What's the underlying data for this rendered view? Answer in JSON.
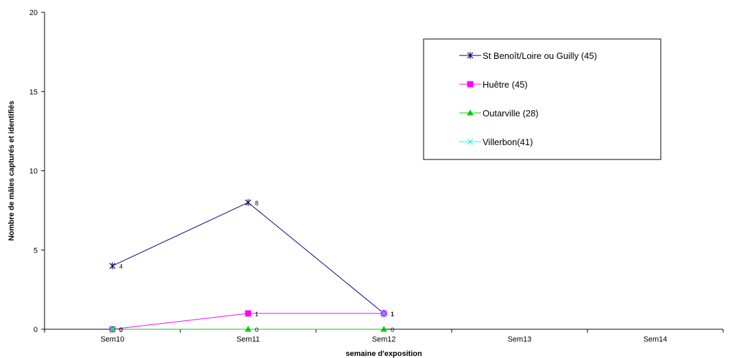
{
  "chart_data": {
    "type": "line",
    "title": "",
    "xlabel": "semaine d'exposition",
    "ylabel": "Nombre de mâles capturés et identifiés",
    "categories": [
      "Sem10",
      "Sem11",
      "Sem12",
      "Sem13",
      "Sem14"
    ],
    "ylim": [
      0,
      20
    ],
    "yticks": [
      "0",
      "5",
      "10",
      "15",
      "20"
    ],
    "grid": false,
    "legend_position": "top-right",
    "series": [
      {
        "name": "St Benoît/Loire ou Guilly (45)",
        "values": [
          4,
          8,
          1,
          null,
          null
        ],
        "labels": [
          "4",
          "8",
          "1",
          null,
          null
        ],
        "color": "#000080",
        "marker": "star"
      },
      {
        "name": "Huêtre (45)",
        "values": [
          0,
          1,
          1,
          null,
          null
        ],
        "labels": [
          "0",
          "1",
          "1",
          null,
          null
        ],
        "color": "#FF00FF",
        "marker": "square"
      },
      {
        "name": "Outarville (28)",
        "values": [
          0,
          0,
          0,
          null,
          null
        ],
        "labels": [
          "0",
          "0",
          "0",
          null,
          null
        ],
        "color": "#00CC00",
        "marker": "triangle"
      },
      {
        "name": "Villerbon(41)",
        "values": [
          0,
          null,
          1,
          null,
          null
        ],
        "labels": [
          "0",
          null,
          "1",
          null,
          null
        ],
        "color": "#00FFFF",
        "marker": "x"
      }
    ]
  }
}
